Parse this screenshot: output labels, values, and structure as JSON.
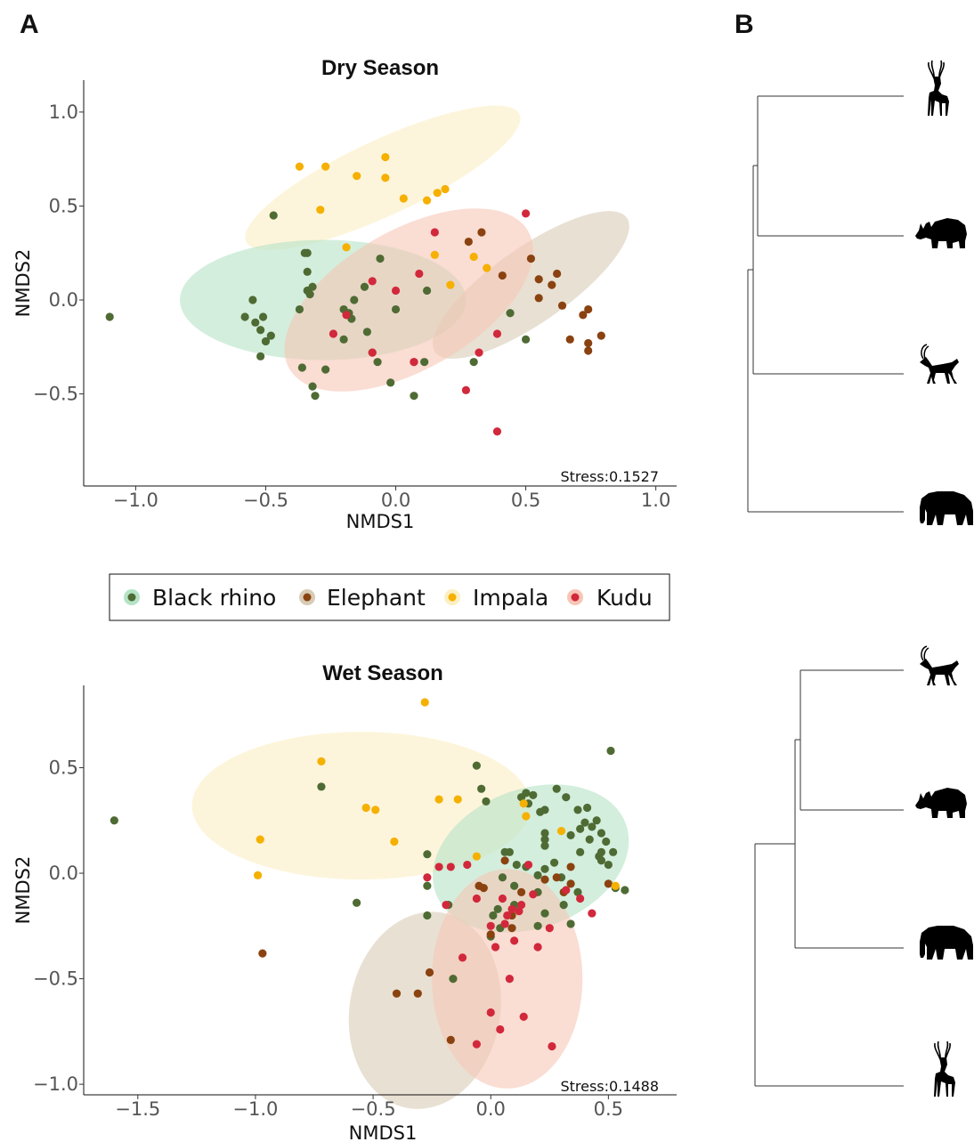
{
  "panels": {
    "a": "A",
    "b": "B"
  },
  "colors": {
    "Black rhino": "#4f6b34",
    "Elephant": "#8a4210",
    "Impala": "#f5b000",
    "Kudu": "#d2283c"
  },
  "ellipse_fill": {
    "Black rhino": "#b5e3c6",
    "Elephant": "#d8cbb5",
    "Impala": "#fcefc3",
    "Kudu": "#f7c6b6"
  },
  "legend": [
    "Black rhino",
    "Elephant",
    "Impala",
    "Kudu"
  ],
  "chart_data": [
    {
      "type": "scatter",
      "title": "Dry Season",
      "xlabel": "NMDS1",
      "ylabel": "NMDS2",
      "xlim": [
        -1.2,
        1.08
      ],
      "ylim": [
        -0.99,
        1.17
      ],
      "xticks": [
        -1.0,
        -0.5,
        0.0,
        0.5,
        1.0
      ],
      "xtick_labels": [
        "−1.0",
        "−0.5",
        "0.0",
        "0.5",
        "1.0"
      ],
      "yticks": [
        -0.5,
        0.0,
        0.5,
        1.0
      ],
      "ytick_labels": [
        "−0.5",
        "0.0",
        "0.5",
        "1.0"
      ],
      "stress": "Stress:0.1527",
      "ellipses": [
        {
          "group": "Impala",
          "center": [
            -0.05,
            0.65
          ],
          "radii": [
            0.58,
            0.2
          ],
          "angle_deg": -25
        },
        {
          "group": "Black rhino",
          "center": [
            -0.28,
            0.0
          ],
          "radii": [
            0.55,
            0.32
          ],
          "angle_deg": 0
        },
        {
          "group": "Elephant",
          "center": [
            0.52,
            0.08
          ],
          "radii": [
            0.45,
            0.2
          ],
          "angle_deg": -35
        },
        {
          "group": "Kudu",
          "center": [
            0.05,
            0.0
          ],
          "radii": [
            0.53,
            0.37
          ],
          "angle_deg": -30
        }
      ],
      "series": [
        {
          "name": "Black rhino",
          "points": [
            [
              -1.1,
              -0.09
            ],
            [
              -0.47,
              0.45
            ],
            [
              -0.35,
              0.25
            ],
            [
              -0.34,
              0.25
            ],
            [
              -0.55,
              0.0
            ],
            [
              -0.58,
              -0.09
            ],
            [
              -0.54,
              -0.12
            ],
            [
              -0.51,
              -0.09
            ],
            [
              -0.52,
              -0.16
            ],
            [
              -0.5,
              -0.22
            ],
            [
              -0.48,
              -0.19
            ],
            [
              -0.52,
              -0.3
            ],
            [
              -0.34,
              0.15
            ],
            [
              -0.34,
              0.05
            ],
            [
              -0.33,
              0.03
            ],
            [
              -0.32,
              0.07
            ],
            [
              -0.37,
              -0.05
            ],
            [
              -0.36,
              -0.36
            ],
            [
              -0.32,
              -0.46
            ],
            [
              -0.31,
              -0.51
            ],
            [
              -0.27,
              -0.37
            ],
            [
              -0.2,
              -0.05
            ],
            [
              -0.18,
              -0.07
            ],
            [
              -0.16,
              0.0
            ],
            [
              -0.12,
              0.07
            ],
            [
              -0.2,
              -0.21
            ],
            [
              -0.17,
              -0.1
            ],
            [
              -0.11,
              -0.17
            ],
            [
              -0.09,
              -0.28
            ],
            [
              -0.06,
              0.22
            ],
            [
              -0.07,
              -0.33
            ],
            [
              -0.02,
              -0.44
            ],
            [
              -0.0,
              -0.05
            ],
            [
              0.07,
              -0.33
            ],
            [
              0.07,
              -0.51
            ],
            [
              0.11,
              -0.33
            ],
            [
              0.12,
              0.05
            ],
            [
              0.3,
              -0.33
            ],
            [
              0.44,
              -0.07
            ],
            [
              0.5,
              -0.21
            ]
          ]
        },
        {
          "name": "Elephant",
          "points": [
            [
              0.28,
              0.31
            ],
            [
              0.33,
              0.36
            ],
            [
              0.41,
              0.13
            ],
            [
              0.52,
              0.22
            ],
            [
              0.55,
              0.11
            ],
            [
              0.55,
              0.01
            ],
            [
              0.6,
              0.08
            ],
            [
              0.62,
              0.14
            ],
            [
              0.64,
              -0.03
            ],
            [
              0.67,
              -0.21
            ],
            [
              0.72,
              -0.08
            ],
            [
              0.74,
              -0.05
            ],
            [
              0.74,
              -0.23
            ],
            [
              0.74,
              -0.27
            ],
            [
              0.79,
              -0.19
            ]
          ]
        },
        {
          "name": "Impala",
          "points": [
            [
              -0.37,
              0.71
            ],
            [
              -0.27,
              0.71
            ],
            [
              -0.15,
              0.66
            ],
            [
              -0.04,
              0.76
            ],
            [
              -0.04,
              0.65
            ],
            [
              -0.29,
              0.48
            ],
            [
              -0.19,
              0.28
            ],
            [
              0.03,
              0.54
            ],
            [
              0.12,
              0.53
            ],
            [
              0.16,
              0.57
            ],
            [
              0.19,
              0.59
            ],
            [
              0.15,
              0.24
            ],
            [
              0.21,
              0.08
            ],
            [
              0.3,
              0.23
            ],
            [
              0.35,
              0.17
            ]
          ]
        },
        {
          "name": "Kudu",
          "points": [
            [
              -0.19,
              -0.08
            ],
            [
              -0.24,
              -0.18
            ],
            [
              -0.09,
              0.1
            ],
            [
              0.0,
              0.05
            ],
            [
              0.09,
              0.14
            ],
            [
              0.15,
              0.36
            ],
            [
              0.07,
              -0.33
            ],
            [
              -0.09,
              -0.28
            ],
            [
              0.27,
              -0.48
            ],
            [
              0.32,
              -0.28
            ],
            [
              0.39,
              -0.18
            ],
            [
              0.39,
              -0.7
            ],
            [
              0.5,
              0.46
            ]
          ]
        }
      ]
    },
    {
      "type": "scatter",
      "title": "Wet Season",
      "xlabel": "NMDS1",
      "ylabel": "NMDS2",
      "xlim": [
        -1.73,
        0.79
      ],
      "ylim": [
        -1.05,
        0.89
      ],
      "xticks": [
        -1.5,
        -1.0,
        -0.5,
        0.0,
        0.5
      ],
      "xtick_labels": [
        "−1.5",
        "−1.0",
        "−0.5",
        "0.0",
        "0.5"
      ],
      "yticks": [
        -1.0,
        -0.5,
        0.0,
        0.5
      ],
      "ytick_labels": [
        "−1.0",
        "−0.5",
        "0.0",
        "0.5"
      ],
      "stress": "Stress:0.1488",
      "ellipses": [
        {
          "group": "Impala",
          "center": [
            -0.55,
            0.32
          ],
          "radii": [
            0.72,
            0.35
          ],
          "angle_deg": 0
        },
        {
          "group": "Elephant",
          "center": [
            -0.28,
            -0.65
          ],
          "radii": [
            0.32,
            0.47
          ],
          "angle_deg": 10
        },
        {
          "group": "Black rhino",
          "center": [
            0.17,
            0.07
          ],
          "radii": [
            0.43,
            0.33
          ],
          "angle_deg": -20
        },
        {
          "group": "Kudu",
          "center": [
            0.07,
            -0.5
          ],
          "radii": [
            0.32,
            0.52
          ],
          "angle_deg": 0
        }
      ],
      "series": [
        {
          "name": "Black rhino",
          "points": [
            [
              -1.6,
              0.25
            ],
            [
              -0.72,
              0.41
            ],
            [
              -0.57,
              -0.14
            ],
            [
              -0.27,
              0.09
            ],
            [
              -0.27,
              -0.06
            ],
            [
              -0.27,
              -0.2
            ],
            [
              -0.18,
              -0.15
            ],
            [
              -0.16,
              -0.5
            ],
            [
              -0.06,
              0.51
            ],
            [
              -0.02,
              0.34
            ],
            [
              -0.04,
              0.4
            ],
            [
              0.0,
              -0.3
            ],
            [
              0.01,
              -0.2
            ],
            [
              0.03,
              -0.17
            ],
            [
              0.04,
              -0.26
            ],
            [
              0.05,
              -0.02
            ],
            [
              0.06,
              0.1
            ],
            [
              0.08,
              0.1
            ],
            [
              0.1,
              -0.06
            ],
            [
              0.1,
              -0.15
            ],
            [
              0.11,
              0.04
            ],
            [
              0.13,
              0.36
            ],
            [
              0.15,
              0.38
            ],
            [
              0.15,
              0.03
            ],
            [
              0.16,
              0.33
            ],
            [
              0.18,
              0.37
            ],
            [
              0.2,
              -0.01
            ],
            [
              0.2,
              -0.09
            ],
            [
              0.2,
              -0.25
            ],
            [
              0.21,
              0.29
            ],
            [
              0.23,
              0.19
            ],
            [
              0.23,
              0.02
            ],
            [
              0.23,
              -0.19
            ],
            [
              0.23,
              0.3
            ],
            [
              0.23,
              0.16
            ],
            [
              0.23,
              0.13
            ],
            [
              0.27,
              0.05
            ],
            [
              0.28,
              0.4
            ],
            [
              0.3,
              -0.02
            ],
            [
              0.31,
              -0.15
            ],
            [
              0.32,
              0.36
            ],
            [
              0.34,
              0.18
            ],
            [
              0.34,
              -0.24
            ],
            [
              0.37,
              0.3
            ],
            [
              0.37,
              -0.09
            ],
            [
              0.38,
              0.21
            ],
            [
              0.38,
              0.1
            ],
            [
              0.4,
              0.24
            ],
            [
              0.41,
              0.31
            ],
            [
              0.42,
              0.16
            ],
            [
              0.43,
              0.22
            ],
            [
              0.45,
              0.25
            ],
            [
              0.47,
              0.19
            ],
            [
              0.47,
              0.1
            ],
            [
              0.46,
              0.08
            ],
            [
              0.47,
              0.06
            ],
            [
              0.49,
              0.15
            ],
            [
              0.5,
              0.04
            ],
            [
              0.51,
              0.58
            ],
            [
              0.52,
              0.1
            ],
            [
              0.53,
              -0.07
            ],
            [
              0.57,
              -0.08
            ]
          ]
        },
        {
          "name": "Elephant",
          "points": [
            [
              -0.97,
              -0.38
            ],
            [
              -0.4,
              -0.57
            ],
            [
              -0.31,
              -0.57
            ],
            [
              -0.26,
              -0.47
            ],
            [
              -0.17,
              -0.79
            ],
            [
              -0.05,
              -0.06
            ],
            [
              -0.03,
              -0.07
            ],
            [
              0.0,
              -0.29
            ],
            [
              0.06,
              0.06
            ],
            [
              0.09,
              -0.2
            ],
            [
              0.09,
              -0.26
            ],
            [
              0.13,
              -0.09
            ],
            [
              0.23,
              -0.03
            ],
            [
              0.28,
              -0.02
            ],
            [
              0.31,
              -0.09
            ],
            [
              0.34,
              -0.05
            ],
            [
              0.34,
              0.03
            ],
            [
              0.5,
              -0.05
            ]
          ]
        },
        {
          "name": "Impala",
          "points": [
            [
              -0.28,
              0.81
            ],
            [
              -0.72,
              0.53
            ],
            [
              -0.53,
              0.31
            ],
            [
              -0.49,
              0.3
            ],
            [
              -0.98,
              0.16
            ],
            [
              -0.99,
              -0.01
            ],
            [
              -0.41,
              0.15
            ],
            [
              -0.22,
              0.35
            ],
            [
              -0.14,
              0.35
            ],
            [
              -0.06,
              0.08
            ],
            [
              0.14,
              0.33
            ],
            [
              0.15,
              0.27
            ],
            [
              0.3,
              0.2
            ],
            [
              0.53,
              -0.06
            ]
          ]
        },
        {
          "name": "Kudu",
          "points": [
            [
              -0.27,
              -0.02
            ],
            [
              -0.22,
              0.03
            ],
            [
              -0.19,
              -0.15
            ],
            [
              -0.17,
              0.03
            ],
            [
              -0.12,
              -0.4
            ],
            [
              -0.1,
              0.04
            ],
            [
              -0.06,
              -0.12
            ],
            [
              0.0,
              -0.25
            ],
            [
              0.02,
              -0.35
            ],
            [
              0.05,
              -0.12
            ],
            [
              0.06,
              -0.24
            ],
            [
              0.07,
              -0.2
            ],
            [
              0.08,
              -0.5
            ],
            [
              0.09,
              -0.17
            ],
            [
              0.1,
              -0.32
            ],
            [
              0.12,
              -0.18
            ],
            [
              0.13,
              -0.15
            ],
            [
              0.16,
              0.04
            ],
            [
              0.18,
              -0.1
            ],
            [
              0.2,
              -0.35
            ],
            [
              0.25,
              -0.26
            ],
            [
              0.32,
              -0.08
            ],
            [
              0.38,
              -0.12
            ],
            [
              0.43,
              -0.19
            ],
            [
              -0.06,
              -0.81
            ],
            [
              0.0,
              -0.66
            ],
            [
              0.04,
              -0.74
            ],
            [
              0.14,
              -0.68
            ],
            [
              0.26,
              -0.82
            ]
          ]
        }
      ]
    }
  ],
  "dendrograms": [
    {
      "leaves": [
        "kudu",
        "black rhino",
        "impala",
        "elephant"
      ]
    },
    {
      "leaves": [
        "impala",
        "black rhino",
        "elephant",
        "kudu"
      ]
    }
  ]
}
